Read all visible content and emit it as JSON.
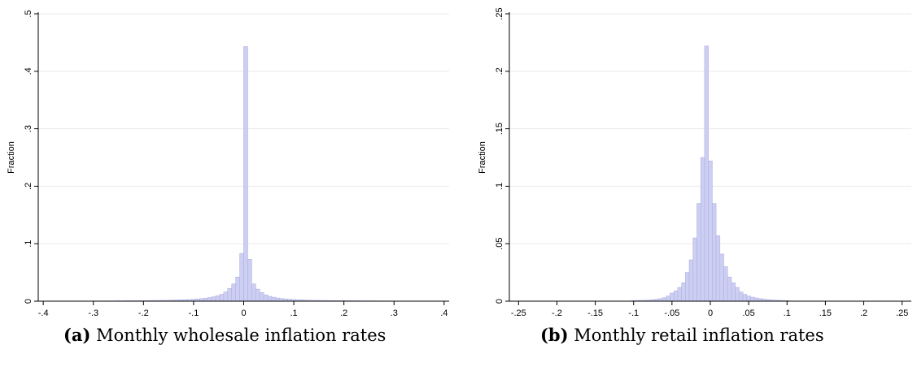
{
  "chart_data": [
    {
      "type": "bar",
      "id": "a",
      "caption_tag": "(a)",
      "caption_text": " Monthly wholesale inflation rates",
      "ylabel": "Fraction",
      "bar_color": "#cccef2",
      "bar_edge": "#b0b2e4",
      "grid": true,
      "xlim": [
        -0.41,
        0.41
      ],
      "ylim": [
        0,
        0.5
      ],
      "xticks": [
        -0.4,
        -0.3,
        -0.2,
        -0.1,
        0,
        0.1,
        0.2,
        0.3,
        0.4
      ],
      "xtick_labels": [
        "-.4",
        "-.3",
        "-.2",
        "-.1",
        "0",
        ".1",
        ".2",
        ".3",
        ".4"
      ],
      "yticks": [
        0,
        0.1,
        0.2,
        0.3,
        0.4,
        0.5
      ],
      "ytick_labels": [
        "0",
        ".1",
        ".2",
        ".3",
        ".4",
        ".5"
      ],
      "bin_width": 0.008,
      "x": [
        -0.3,
        -0.292,
        -0.284,
        -0.276,
        -0.268,
        -0.26,
        -0.252,
        -0.244,
        -0.236,
        -0.228,
        -0.22,
        -0.212,
        -0.204,
        -0.196,
        -0.188,
        -0.18,
        -0.172,
        -0.164,
        -0.156,
        -0.148,
        -0.14,
        -0.132,
        -0.124,
        -0.116,
        -0.108,
        -0.1,
        -0.092,
        -0.084,
        -0.076,
        -0.068,
        -0.06,
        -0.052,
        -0.044,
        -0.036,
        -0.028,
        -0.02,
        -0.012,
        -0.004,
        0.004,
        0.012,
        0.02,
        0.028,
        0.036,
        0.044,
        0.052,
        0.06,
        0.068,
        0.076,
        0.084,
        0.092,
        0.1,
        0.108,
        0.116,
        0.124,
        0.132,
        0.14,
        0.148,
        0.156,
        0.164,
        0.172,
        0.18,
        0.188,
        0.196,
        0.204,
        0.212,
        0.22,
        0.228,
        0.236,
        0.244,
        0.252,
        0.26,
        0.268,
        0.276,
        0.284,
        0.292,
        0.3
      ],
      "values": [
        0.0004,
        0.0004,
        0.0004,
        0.0005,
        0.0005,
        0.0005,
        0.0006,
        0.0006,
        0.0007,
        0.0007,
        0.0008,
        0.0008,
        0.0009,
        0.001,
        0.0011,
        0.0012,
        0.0013,
        0.0014,
        0.0015,
        0.0017,
        0.0019,
        0.0021,
        0.0023,
        0.0026,
        0.0029,
        0.0033,
        0.0038,
        0.0044,
        0.0052,
        0.0062,
        0.0076,
        0.0094,
        0.012,
        0.016,
        0.022,
        0.03,
        0.042,
        0.083,
        0.443,
        0.073,
        0.03,
        0.021,
        0.015,
        0.011,
        0.0085,
        0.0068,
        0.0055,
        0.0046,
        0.0039,
        0.0033,
        0.0029,
        0.0025,
        0.0022,
        0.0019,
        0.0017,
        0.0015,
        0.0014,
        0.0013,
        0.0012,
        0.0011,
        0.001,
        0.0009,
        0.0009,
        0.0008,
        0.0008,
        0.0007,
        0.0007,
        0.0006,
        0.0006,
        0.0006,
        0.0005,
        0.0005,
        0.0005,
        0.0004,
        0.0004,
        0.0004
      ]
    },
    {
      "type": "bar",
      "id": "b",
      "caption_tag": "(b)",
      "caption_text": " Monthly retail inflation rates",
      "ylabel": "Fraction",
      "bar_color": "#cccef2",
      "bar_edge": "#b0b2e4",
      "grid": true,
      "xlim": [
        -0.262,
        0.262
      ],
      "ylim": [
        0,
        0.25
      ],
      "xticks": [
        -0.25,
        -0.2,
        -0.15,
        -0.1,
        -0.05,
        0,
        0.05,
        0.1,
        0.15,
        0.2,
        0.25
      ],
      "xtick_labels": [
        "-.25",
        "-.2",
        "-.15",
        "-.1",
        "-.05",
        "0",
        ".05",
        ".1",
        ".15",
        ".2",
        ".25"
      ],
      "yticks": [
        0,
        0.05,
        0.1,
        0.15,
        0.2,
        0.25
      ],
      "ytick_labels": [
        "0",
        ".05",
        ".1",
        ".15",
        ".2",
        ".25"
      ],
      "bin_width": 0.005,
      "x": [
        -0.1,
        -0.095,
        -0.09,
        -0.085,
        -0.08,
        -0.075,
        -0.07,
        -0.065,
        -0.06,
        -0.055,
        -0.05,
        -0.045,
        -0.04,
        -0.035,
        -0.03,
        -0.025,
        -0.02,
        -0.015,
        -0.01,
        -0.005,
        0,
        0.005,
        0.01,
        0.015,
        0.02,
        0.025,
        0.03,
        0.035,
        0.04,
        0.045,
        0.05,
        0.055,
        0.06,
        0.065,
        0.07,
        0.075,
        0.08,
        0.085,
        0.09,
        0.095,
        0.1
      ],
      "values": [
        0.0005,
        0.0006,
        0.0007,
        0.0008,
        0.001,
        0.0013,
        0.0017,
        0.0022,
        0.003,
        0.0045,
        0.007,
        0.009,
        0.012,
        0.016,
        0.025,
        0.036,
        0.055,
        0.085,
        0.125,
        0.222,
        0.122,
        0.085,
        0.057,
        0.041,
        0.03,
        0.021,
        0.016,
        0.012,
        0.008,
        0.006,
        0.0045,
        0.0035,
        0.0028,
        0.0022,
        0.0018,
        0.0014,
        0.0011,
        0.0009,
        0.0007,
        0.0006,
        0.0005
      ]
    }
  ]
}
